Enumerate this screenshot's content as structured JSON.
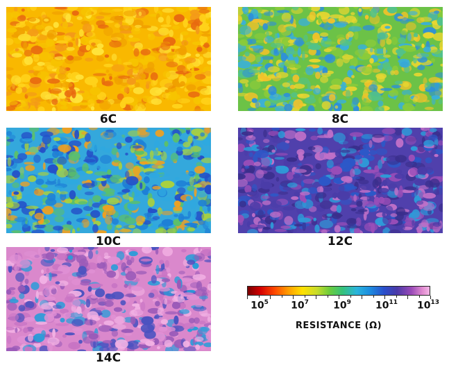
{
  "panels": [
    {
      "label": "6C",
      "palette": [
        "#f7c400",
        "#ffd21a",
        "#f0a000",
        "#e86a10",
        "#ffe33a",
        "#f49a18"
      ],
      "dominant": "#f9b800"
    },
    {
      "label": "8C",
      "palette": [
        "#8acb3a",
        "#52c28a",
        "#3ab0d8",
        "#f2c22a",
        "#e8d630",
        "#2e90d8"
      ],
      "dominant": "#6cc247"
    },
    {
      "label": "10C",
      "palette": [
        "#2ea8e0",
        "#2450c8",
        "#5cc06a",
        "#a8d040",
        "#f0a020",
        "#1e7fd6"
      ],
      "dominant": "#34a8dc"
    },
    {
      "label": "12C",
      "palette": [
        "#4a3ca8",
        "#2c58c8",
        "#9a4eb8",
        "#2e9ad8",
        "#c070c8",
        "#3a2e8c"
      ],
      "dominant": "#5040ac"
    },
    {
      "label": "14C",
      "palette": [
        "#e090d4",
        "#c874c4",
        "#9a5ab8",
        "#4a52c0",
        "#2a9cd8",
        "#f2b2e4"
      ],
      "dominant": "#da88cc"
    }
  ],
  "colorbar": {
    "tick_bases": [
      "10",
      "10",
      "10",
      "10",
      "10"
    ],
    "tick_exponents": [
      "5",
      "7",
      "9",
      "11",
      "13"
    ],
    "title": "RESISTANCE (Ω)"
  }
}
